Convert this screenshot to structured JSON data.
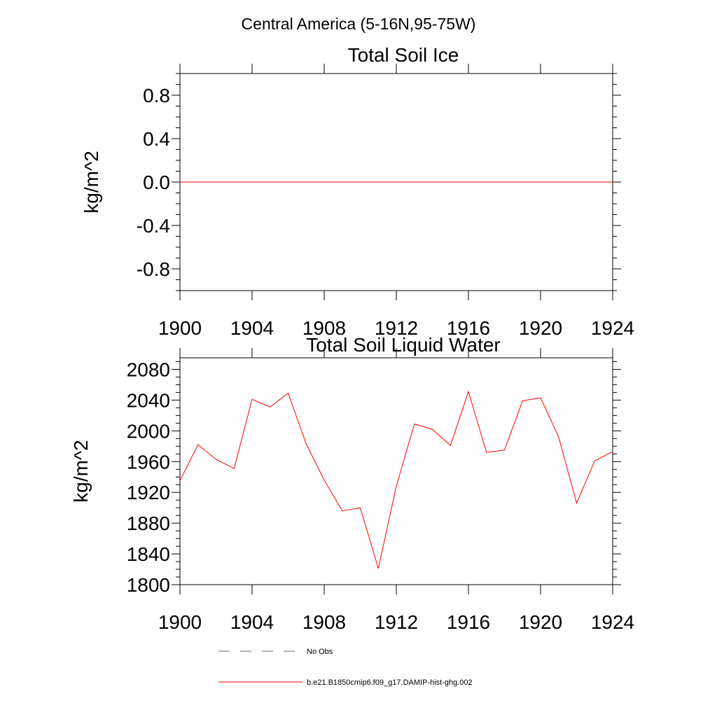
{
  "suptitle": "Central America (5-16N,95-75W)",
  "chart_data": [
    {
      "type": "line",
      "title": "Total Soil Ice",
      "ylabel": "kg/m^2",
      "xlim": [
        1900,
        1924
      ],
      "ylim": [
        -1,
        1
      ],
      "xticks": [
        1900,
        1904,
        1908,
        1912,
        1916,
        1920,
        1924
      ],
      "yticks": [
        -0.8,
        -0.4,
        0.0,
        0.4,
        0.8
      ],
      "ytick_labels": [
        "-0.8",
        "-0.4",
        "0.0",
        "0.4",
        "0.8"
      ],
      "series": [
        {
          "color": "#ff0000",
          "x": [
            1900,
            1901,
            1902,
            1903,
            1904,
            1905,
            1906,
            1907,
            1908,
            1909,
            1910,
            1911,
            1912,
            1913,
            1914,
            1915,
            1916,
            1917,
            1918,
            1919,
            1920,
            1921,
            1922,
            1923,
            1924
          ],
          "y": [
            0,
            0,
            0,
            0,
            0,
            0,
            0,
            0,
            0,
            0,
            0,
            0,
            0,
            0,
            0,
            0,
            0,
            0,
            0,
            0,
            0,
            0,
            0,
            0,
            0
          ]
        }
      ]
    },
    {
      "type": "line",
      "title": "Total Soil Liquid Water",
      "ylabel": "kg/m^2",
      "xlim": [
        1900,
        1924
      ],
      "ylim": [
        1800,
        2095
      ],
      "xticks": [
        1900,
        1904,
        1908,
        1912,
        1916,
        1920,
        1924
      ],
      "yticks": [
        1800,
        1840,
        1880,
        1920,
        1960,
        2000,
        2040,
        2080
      ],
      "ytick_labels": [
        "1800",
        "1840",
        "1880",
        "1920",
        "1960",
        "2000",
        "2040",
        "2080"
      ],
      "series": [
        {
          "color": "#ff0000",
          "x": [
            1900,
            1901,
            1902,
            1903,
            1904,
            1905,
            1906,
            1907,
            1908,
            1909,
            1910,
            1911,
            1912,
            1913,
            1914,
            1915,
            1916,
            1917,
            1918,
            1919,
            1920,
            1921,
            1922,
            1923,
            1924
          ],
          "y": [
            1935,
            1982,
            1963,
            1951,
            2041,
            2031,
            2049,
            1983,
            1936,
            1896,
            1900,
            1821,
            1928,
            2009,
            2002,
            1981,
            2051,
            1972,
            1975,
            2039,
            2043,
            1992,
            1906,
            1961,
            1973
          ]
        }
      ]
    }
  ],
  "legend": [
    {
      "label": "No Obs",
      "color": "#5b6b8a",
      "dash": "dashed"
    },
    {
      "label": "b.e21.B1850cmip6.f09_g17.DAMIP-hist-ghg.002",
      "color": "#ff0000",
      "dash": "solid"
    }
  ]
}
